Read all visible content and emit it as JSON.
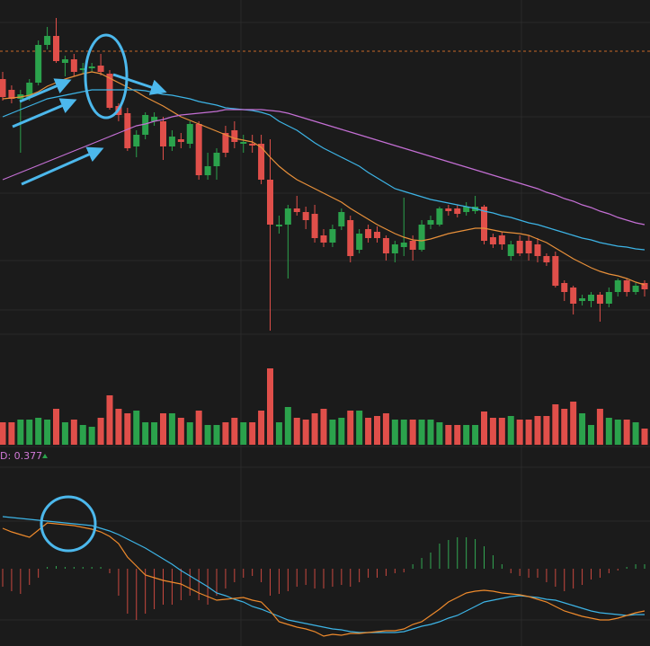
{
  "chart_data": [
    {
      "type": "candlestick",
      "categories": [
        null,
        null,
        null,
        null,
        null,
        null,
        null,
        null,
        null,
        null,
        null,
        null,
        null,
        null,
        null,
        null,
        null,
        null,
        null,
        null,
        null,
        null,
        null,
        null,
        null,
        null,
        null,
        null,
        null,
        null,
        null,
        null,
        null,
        null,
        null,
        null,
        null,
        null,
        null,
        null,
        null,
        null,
        null,
        null,
        null,
        null,
        null,
        null,
        null,
        null,
        null,
        null,
        null,
        null,
        null,
        null,
        null,
        null,
        null,
        null,
        null,
        null,
        null,
        null,
        null,
        null,
        null,
        null,
        null,
        null,
        null,
        null,
        null
      ],
      "open": [
        312,
        300,
        290,
        292,
        308,
        350,
        360,
        330,
        334,
        322,
        324,
        327,
        318,
        282,
        274,
        237,
        250,
        265,
        265,
        237,
        245,
        240,
        262,
        205,
        215,
        252,
        255,
        240,
        240,
        240,
        200,
        148,
        150,
        168,
        164,
        162,
        138,
        130,
        148,
        155,
        122,
        145,
        142,
        135,
        118,
        125,
        132,
        122,
        150,
        150,
        168,
        168,
        164,
        165,
        170,
        136,
        138,
        115,
        132,
        132,
        128,
        115,
        115,
        85,
        80,
        65,
        65,
        72,
        62,
        75,
        88,
        75,
        85
      ],
      "close": [
        292,
        290,
        295,
        308,
        350,
        360,
        332,
        334,
        320,
        324,
        326,
        320,
        280,
        272,
        235,
        250,
        272,
        270,
        237,
        248,
        242,
        262,
        205,
        215,
        230,
        230,
        242,
        242,
        238,
        200,
        150,
        150,
        168,
        164,
        155,
        135,
        130,
        145,
        164,
        115,
        140,
        135,
        135,
        118,
        128,
        130,
        122,
        150,
        155,
        168,
        165,
        162,
        170,
        170,
        132,
        128,
        128,
        128,
        118,
        118,
        115,
        108,
        82,
        75,
        62,
        68,
        72,
        62,
        75,
        88,
        75,
        82,
        78
      ],
      "high": [
        320,
        305,
        300,
        312,
        355,
        370,
        380,
        338,
        340,
        330,
        330,
        340,
        322,
        285,
        280,
        255,
        275,
        275,
        270,
        255,
        252,
        265,
        265,
        230,
        235,
        260,
        265,
        250,
        250,
        250,
        245,
        160,
        172,
        182,
        170,
        172,
        145,
        150,
        168,
        160,
        145,
        150,
        148,
        138,
        132,
        180,
        138,
        155,
        160,
        170,
        172,
        172,
        175,
        182,
        172,
        140,
        142,
        132,
        138,
        138,
        135,
        118,
        120,
        88,
        82,
        72,
        75,
        75,
        80,
        90,
        90,
        85,
        88
      ],
      "low": [
        288,
        285,
        230,
        288,
        305,
        345,
        330,
        315,
        315,
        318,
        320,
        316,
        278,
        265,
        232,
        225,
        245,
        260,
        222,
        232,
        235,
        235,
        200,
        200,
        200,
        225,
        235,
        230,
        230,
        195,
        32,
        140,
        90,
        160,
        145,
        130,
        125,
        125,
        144,
        108,
        118,
        130,
        130,
        110,
        108,
        115,
        110,
        120,
        145,
        148,
        160,
        158,
        160,
        162,
        128,
        124,
        122,
        110,
        115,
        110,
        108,
        104,
        80,
        65,
        50,
        60,
        58,
        42,
        58,
        70,
        70,
        72,
        70
      ],
      "up_color": "#2ba24c",
      "down_color": "#e04f4a",
      "lines": [
        {
          "color": "#e8903a",
          "values": [
            290,
            291,
            292,
            294,
            298,
            304,
            308,
            312,
            315,
            318,
            320,
            318,
            313,
            308,
            303,
            298,
            292,
            287,
            282,
            276,
            270,
            266,
            262,
            258,
            254,
            250,
            246,
            244,
            242,
            236,
            225,
            215,
            207,
            200,
            195,
            190,
            185,
            180,
            175,
            168,
            162,
            156,
            150,
            145,
            140,
            136,
            133,
            132,
            134,
            137,
            140,
            142,
            144,
            146,
            146,
            144,
            142,
            141,
            140,
            138,
            134,
            130,
            124,
            118,
            112,
            107,
            102,
            98,
            95,
            93,
            90,
            86,
            83
          ]
        },
        {
          "color": "#3db4e6",
          "values": [
            270,
            274,
            278,
            282,
            286,
            290,
            292,
            294,
            296,
            298,
            300,
            300,
            300,
            300,
            300,
            300,
            299,
            297,
            295,
            294,
            292,
            290,
            287,
            285,
            283,
            280,
            279,
            278,
            277,
            275,
            272,
            265,
            260,
            255,
            248,
            241,
            235,
            230,
            225,
            220,
            215,
            208,
            202,
            196,
            190,
            187,
            184,
            181,
            178,
            176,
            174,
            172,
            170,
            168,
            165,
            163,
            160,
            158,
            155,
            152,
            150,
            147,
            144,
            141,
            138,
            135,
            133,
            130,
            128,
            126,
            125,
            123,
            122
          ]
        },
        {
          "color": "#c46fd4",
          "values": [
            200,
            204,
            208,
            212,
            216,
            220,
            224,
            228,
            232,
            236,
            240,
            244,
            248,
            252,
            256,
            260,
            262,
            265,
            267,
            270,
            272,
            273,
            274,
            275,
            276,
            278,
            278,
            278,
            278,
            278,
            277,
            276,
            274,
            271,
            268,
            265,
            262,
            259,
            256,
            253,
            250,
            247,
            244,
            241,
            238,
            235,
            232,
            229,
            226,
            223,
            220,
            217,
            214,
            211,
            208,
            205,
            202,
            199,
            196,
            193,
            190,
            186,
            183,
            179,
            176,
            172,
            169,
            165,
            162,
            158,
            155,
            152,
            150
          ]
        }
      ],
      "hline": {
        "value": 343,
        "color": "#c8692a"
      },
      "ylim": [
        30,
        400
      ]
    },
    {
      "type": "bar",
      "values": [
        25,
        25,
        28,
        28,
        30,
        28,
        40,
        25,
        28,
        22,
        20,
        30,
        55,
        40,
        35,
        38,
        25,
        25,
        35,
        35,
        30,
        25,
        38,
        22,
        22,
        25,
        30,
        25,
        25,
        38,
        85,
        25,
        42,
        30,
        28,
        35,
        40,
        28,
        30,
        38,
        38,
        30,
        32,
        35,
        28,
        28,
        28,
        28,
        28,
        25,
        22,
        22,
        22,
        22,
        37,
        30,
        30,
        32,
        28,
        28,
        32,
        32,
        45,
        40,
        48,
        35,
        22,
        40,
        30,
        28,
        28,
        25,
        18
      ],
      "ylim": [
        0,
        100
      ]
    },
    {
      "type": "macd",
      "label": "D: 0.377",
      "label_color": "#d27ad8",
      "histogram": [
        -20,
        -25,
        -28,
        -18,
        -10,
        2,
        3,
        2,
        2,
        2,
        2,
        2,
        -5,
        -30,
        -50,
        -57,
        -50,
        -45,
        -40,
        -40,
        -35,
        -30,
        -35,
        -40,
        -30,
        -22,
        -15,
        -10,
        -8,
        -15,
        -30,
        -28,
        -25,
        -20,
        -18,
        -22,
        -22,
        -20,
        -18,
        -20,
        -15,
        -10,
        -10,
        -8,
        -5,
        -4,
        5,
        12,
        18,
        28,
        32,
        35,
        35,
        33,
        25,
        15,
        5,
        -5,
        -8,
        -10,
        -10,
        -15,
        -20,
        -25,
        -22,
        -18,
        -12,
        -10,
        -5,
        -2,
        2,
        5,
        5
      ],
      "up_color": "#33a853",
      "down_color": "#c9483f",
      "series": [
        {
          "color": "#3db4e6",
          "values": [
            58,
            57,
            56,
            55,
            54,
            53,
            52,
            51,
            50,
            49,
            48,
            45,
            42,
            38,
            33,
            28,
            23,
            17,
            11,
            5,
            -2,
            -8,
            -14,
            -20,
            -27,
            -30,
            -34,
            -37,
            -42,
            -45,
            -49,
            -53,
            -57,
            -59,
            -61,
            -63,
            -65,
            -67,
            -68,
            -70,
            -71,
            -71,
            -71,
            -71,
            -71,
            -70,
            -67,
            -64,
            -62,
            -59,
            -55,
            -52,
            -47,
            -42,
            -37,
            -35,
            -33,
            -31,
            -30,
            -31,
            -32,
            -34,
            -35,
            -38,
            -41,
            -44,
            -47,
            -49,
            -50,
            -51,
            -52,
            -51,
            -51
          ]
        },
        {
          "color": "#ee8a2c",
          "values": [
            45,
            41,
            38,
            35,
            43,
            51,
            50,
            49,
            48,
            46,
            44,
            41,
            36,
            28,
            13,
            3,
            -7,
            -10,
            -13,
            -15,
            -17,
            -22,
            -27,
            -31,
            -35,
            -34,
            -33,
            -32,
            -35,
            -37,
            -47,
            -59,
            -62,
            -65,
            -67,
            -70,
            -75,
            -73,
            -74,
            -72,
            -72,
            -71,
            -70,
            -69,
            -69,
            -67,
            -62,
            -59,
            -52,
            -45,
            -37,
            -32,
            -27,
            -25,
            -24,
            -25,
            -27,
            -28,
            -29,
            -31,
            -34,
            -37,
            -42,
            -47,
            -50,
            -53,
            -55,
            -57,
            -57,
            -55,
            -52,
            -49,
            -47
          ]
        }
      ],
      "ylim": [
        -86,
        113
      ]
    }
  ]
}
